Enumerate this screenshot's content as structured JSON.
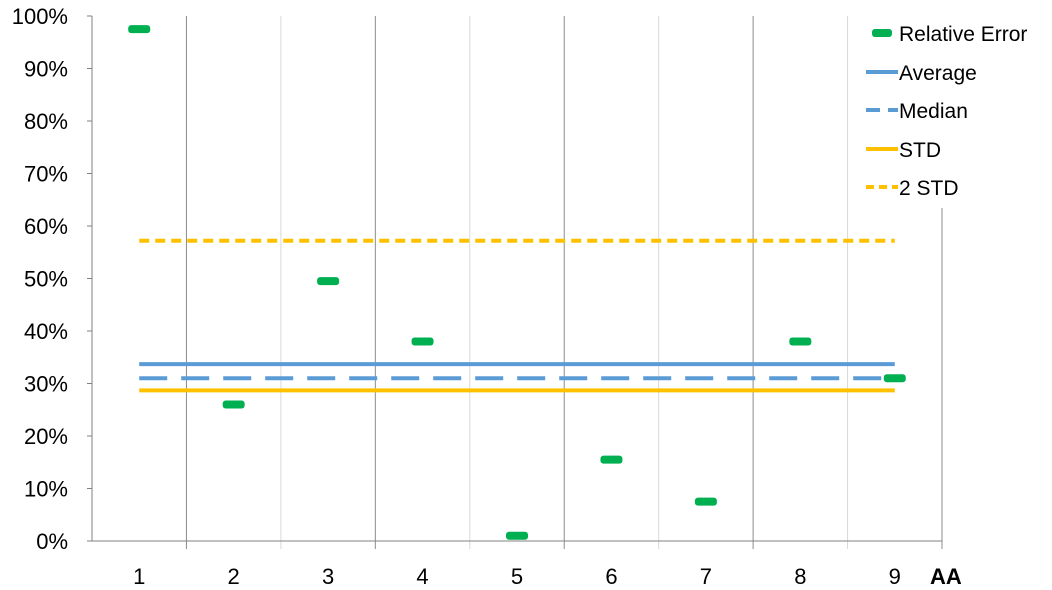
{
  "chart_data": {
    "type": "scatter",
    "xlabel": "AA",
    "ylabel": "",
    "title": "",
    "categories": [
      "1",
      "2",
      "3",
      "4",
      "5",
      "6",
      "7",
      "8",
      "9"
    ],
    "ylim": [
      0,
      1
    ],
    "yticks": [
      "0%",
      "10%",
      "20%",
      "30%",
      "40%",
      "50%",
      "60%",
      "70%",
      "80%",
      "90%",
      "100%"
    ],
    "grid": true,
    "legend_position": "top-right",
    "series": [
      {
        "name": "Relative Error",
        "kind": "marker-dash",
        "color": "#00b050",
        "values": [
          0.975,
          0.26,
          0.495,
          0.38,
          0.01,
          0.155,
          0.075,
          0.38,
          0.31
        ]
      },
      {
        "name": "Average",
        "kind": "line",
        "color": "#5b9bd5",
        "style": "solid",
        "value": 0.337
      },
      {
        "name": "Median",
        "kind": "line",
        "color": "#5b9bd5",
        "style": "dashed",
        "value": 0.31
      },
      {
        "name": "STD",
        "kind": "line",
        "color": "#ffc000",
        "style": "solid",
        "value": 0.287
      },
      {
        "name": "2 STD",
        "kind": "line",
        "color": "#ffc000",
        "style": "dashed",
        "value": 0.572
      }
    ]
  }
}
